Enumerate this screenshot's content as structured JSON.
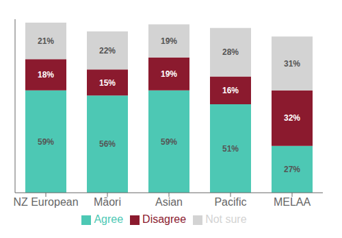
{
  "chart_data": {
    "type": "bar",
    "stacked": true,
    "categories": [
      "NZ European",
      "Māori",
      "Asian",
      "Pacific",
      "MELAA"
    ],
    "series": [
      {
        "name": "Agree",
        "color": "#4DC8B4",
        "values": [
          59,
          56,
          59,
          51,
          27
        ],
        "value_labels": [
          "59%",
          "56%",
          "59%",
          "51%",
          "27%"
        ]
      },
      {
        "name": "Disagree",
        "color": "#8B1A2E",
        "values": [
          18,
          15,
          19,
          16,
          32
        ],
        "value_labels": [
          "18%",
          "15%",
          "19%",
          "16%",
          "32%"
        ]
      },
      {
        "name": "Not sure",
        "color": "#D3D3D3",
        "values": [
          21,
          22,
          19,
          28,
          31
        ],
        "value_labels": [
          "21%",
          "22%",
          "19%",
          "28%",
          "31%"
        ]
      }
    ],
    "ylim": [
      0,
      100
    ],
    "data_labels": true,
    "tick_labels": "x",
    "legend": "bottom",
    "grid": false
  }
}
